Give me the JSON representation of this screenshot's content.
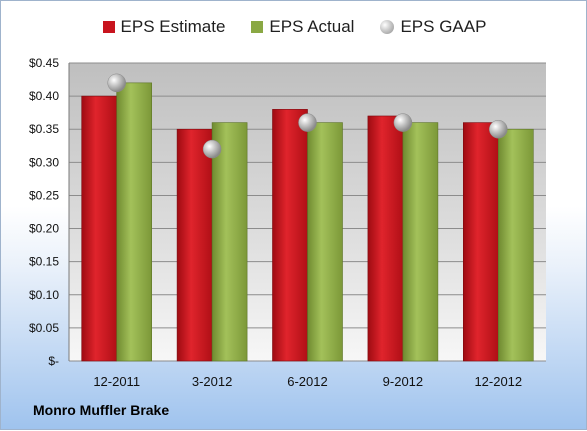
{
  "chart_data": {
    "type": "bar",
    "title": "",
    "xlabel": "",
    "ylabel": "",
    "categories": [
      "12-2011",
      "3-2012",
      "6-2012",
      "9-2012",
      "12-2012"
    ],
    "series": [
      {
        "name": "EPS Estimate",
        "kind": "bar",
        "color": "#c8141e",
        "values": [
          0.4,
          0.35,
          0.38,
          0.37,
          0.36
        ]
      },
      {
        "name": "EPS Actual",
        "kind": "bar",
        "color": "#8aa844",
        "values": [
          0.42,
          0.36,
          0.36,
          0.36,
          0.35
        ]
      },
      {
        "name": "EPS GAAP",
        "kind": "marker",
        "color": "#b5b5b5",
        "values": [
          0.42,
          0.32,
          0.36,
          0.36,
          0.35
        ]
      }
    ],
    "ylim": [
      0,
      0.45
    ],
    "yticks": [
      0,
      0.05,
      0.1,
      0.15,
      0.2,
      0.25,
      0.3,
      0.35,
      0.4,
      0.45
    ],
    "ytick_labels": [
      "$-",
      "$0.05",
      "$0.10",
      "$0.15",
      "$0.20",
      "$0.25",
      "$0.30",
      "$0.35",
      "$0.40",
      "$0.45"
    ],
    "grid": true,
    "legend": "top"
  },
  "footer": {
    "company": "Monro Muffler Brake"
  }
}
